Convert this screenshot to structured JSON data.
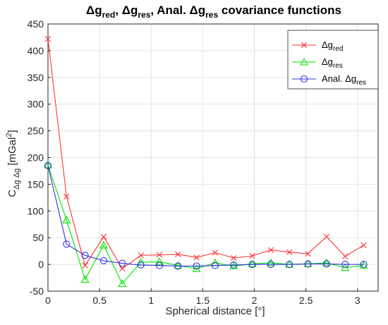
{
  "chart_data": {
    "type": "line",
    "title": {
      "prefix1": "Δg",
      "sub1": "red",
      "sep1": ", Δg",
      "sub2": "res",
      "sep2": ", Anal. Δg",
      "sub3": "res",
      "suffix": " covariance functions"
    },
    "xlabel": "Spherical distance [°]",
    "ylabel": {
      "main": "C",
      "sub": "Δg Δg",
      "unit_open": " [mGal",
      "sup": "2",
      "unit_close": "]"
    },
    "xlim": [
      0,
      3.2
    ],
    "ylim": [
      -50,
      450
    ],
    "xticks": [
      0,
      0.5,
      1,
      1.5,
      2,
      2.5,
      3
    ],
    "xtick_labels": [
      "0",
      "0.5",
      "1",
      "1.5",
      "2",
      "2.5",
      "3"
    ],
    "yticks": [
      -50,
      0,
      50,
      100,
      150,
      200,
      250,
      300,
      350,
      400,
      450
    ],
    "ytick_labels": [
      "-50",
      "0",
      "50",
      "100",
      "150",
      "200",
      "250",
      "300",
      "350",
      "400",
      "450"
    ],
    "grid": true,
    "legend_position": "top-right",
    "x": [
      0,
      0.18,
      0.36,
      0.54,
      0.72,
      0.9,
      1.08,
      1.26,
      1.44,
      1.62,
      1.8,
      1.98,
      2.16,
      2.34,
      2.52,
      2.7,
      2.88,
      3.06
    ],
    "series": [
      {
        "label_main": "Δg",
        "label_sub": "red",
        "marker": "x",
        "color": "#ff3333",
        "values": [
          422,
          127,
          -2,
          52,
          -8,
          17,
          18,
          19,
          13,
          22,
          12,
          16,
          27,
          23,
          20,
          52,
          15,
          36
        ]
      },
      {
        "label_main": "Δg",
        "label_sub": "res",
        "marker": "triangle",
        "color": "#00e600",
        "values": [
          186,
          83,
          -28,
          36,
          -36,
          4,
          5,
          -2,
          -8,
          3,
          -3,
          1,
          3,
          0,
          1,
          3,
          -6,
          -2
        ]
      },
      {
        "label_main": "Anal. Δg",
        "label_sub": "res",
        "marker": "circle",
        "color": "#3333dd",
        "values": [
          185,
          38,
          17,
          7,
          2,
          -1,
          -2,
          -3,
          -3,
          -2,
          -1,
          0,
          0,
          0,
          1,
          1,
          0,
          0
        ]
      }
    ]
  }
}
